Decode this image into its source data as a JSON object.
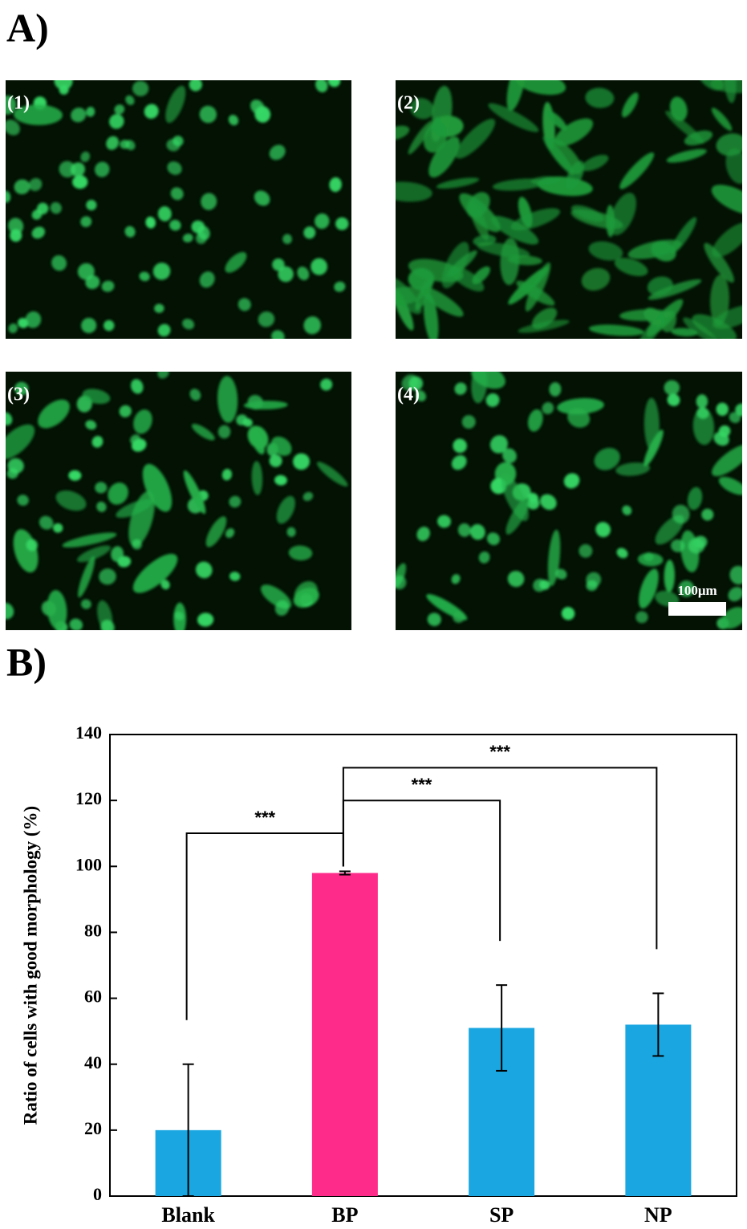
{
  "panel_a": {
    "label": "A)",
    "images": [
      {
        "label": "(1)"
      },
      {
        "label": "(2)"
      },
      {
        "label": "(3)"
      },
      {
        "label": "(4)"
      }
    ],
    "scale_bar": "100μm"
  },
  "panel_b": {
    "label": "B)"
  },
  "chart_data": {
    "type": "bar",
    "ylabel": "Ratio of cells with good morphology (%)",
    "categories": [
      "Blank",
      "BP",
      "SP",
      "NP"
    ],
    "values": [
      20,
      98,
      51,
      52
    ],
    "errors": [
      20,
      0.5,
      13,
      9.5
    ],
    "colors": [
      "#1aa7e1",
      "#fe2b8b",
      "#1aa7e1",
      "#1aa7e1"
    ],
    "ylim": [
      0,
      140
    ],
    "yticks": [
      0,
      20,
      40,
      60,
      80,
      100,
      120,
      140
    ],
    "annotations": [
      {
        "text": "***",
        "from": "Blank",
        "to": "BP"
      },
      {
        "text": "***",
        "from": "BP",
        "to": "SP"
      },
      {
        "text": "***",
        "from": "BP",
        "to": "NP"
      }
    ]
  }
}
